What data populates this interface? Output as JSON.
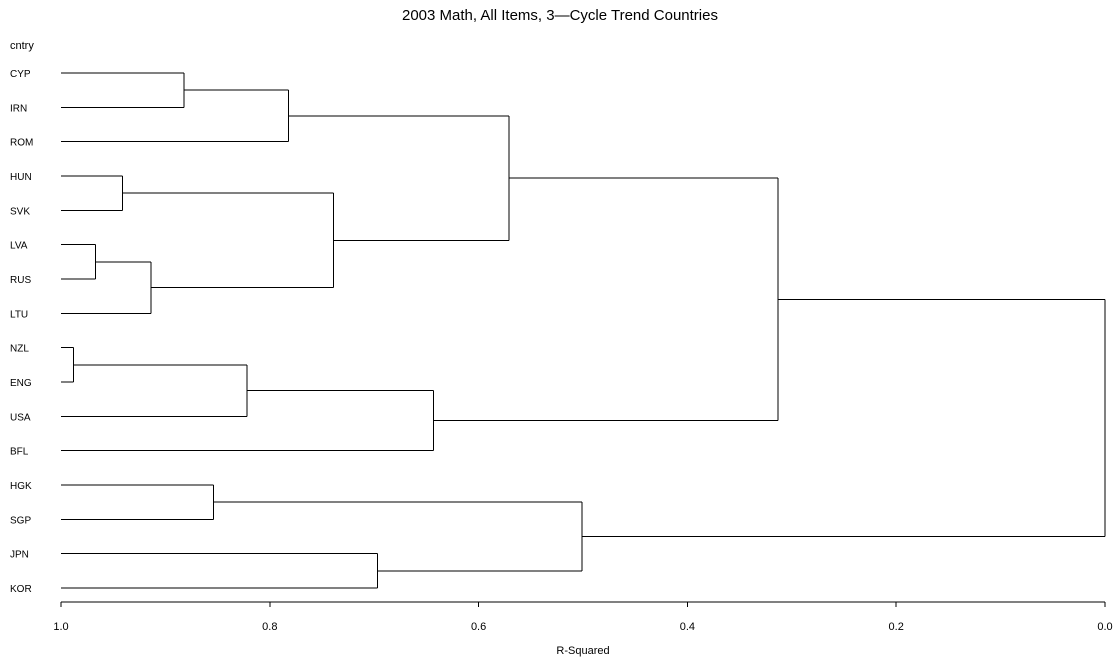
{
  "chart_data": {
    "type": "dendrogram",
    "title": "2003 Math, All Items, 3—Cycle Trend Countries",
    "ylabel": "cntry",
    "xlabel": "R-Squared",
    "xlim": [
      1.0,
      0.0
    ],
    "xticks": [
      "1.0",
      "0.8",
      "0.6",
      "0.4",
      "0.2",
      "0.0"
    ],
    "tick_values": [
      1.0,
      0.8,
      0.6,
      0.4,
      0.2,
      0.0
    ],
    "leaves": [
      "CYP",
      "IRN",
      "ROM",
      "HUN",
      "SVK",
      "LVA",
      "RUS",
      "LTU",
      "NZL",
      "ENG",
      "USA",
      "BFL",
      "HGK",
      "SGP",
      "JPN",
      "KOR"
    ],
    "merges": [
      {
        "a": "NZL",
        "b": "ENG",
        "height": 0.988
      },
      {
        "a": "LVA",
        "b": "RUS",
        "height": 0.967
      },
      {
        "a": "HUN",
        "b": "SVK",
        "height": 0.941
      },
      {
        "a": "LVA+RUS",
        "b": "LTU",
        "height": 0.914
      },
      {
        "a": "CYP",
        "b": "IRN",
        "height": 0.882
      },
      {
        "a": "HGK",
        "b": "SGP",
        "height": 0.854
      },
      {
        "a": "NZL+ENG",
        "b": "USA",
        "height": 0.822
      },
      {
        "a": "CYP+IRN",
        "b": "ROM",
        "height": 0.782
      },
      {
        "a": "HUN+SVK",
        "b": "LVA+RUS+LTU",
        "height": 0.739
      },
      {
        "a": "JPN",
        "b": "KOR",
        "height": 0.697
      },
      {
        "a": "NZL+ENG+USA",
        "b": "BFL",
        "height": 0.643
      },
      {
        "a": "CYP+IRN+ROM",
        "b": "HUN+SVK+LVA+RUS+LTU",
        "height": 0.571
      },
      {
        "a": "HGK+SGP",
        "b": "JPN+KOR",
        "height": 0.501
      },
      {
        "a": "CYP+IRN+ROM+HUN+SVK+LVA+RUS+LTU",
        "b": "NZL+ENG+USA+BFL",
        "height": 0.313
      },
      {
        "a": "CYP+IRN+ROM+HUN+SVK+LVA+RUS+LTU+NZL+ENG+USA+BFL",
        "b": "HGK+SGP+JPN+KOR",
        "height": 0.0
      }
    ]
  }
}
